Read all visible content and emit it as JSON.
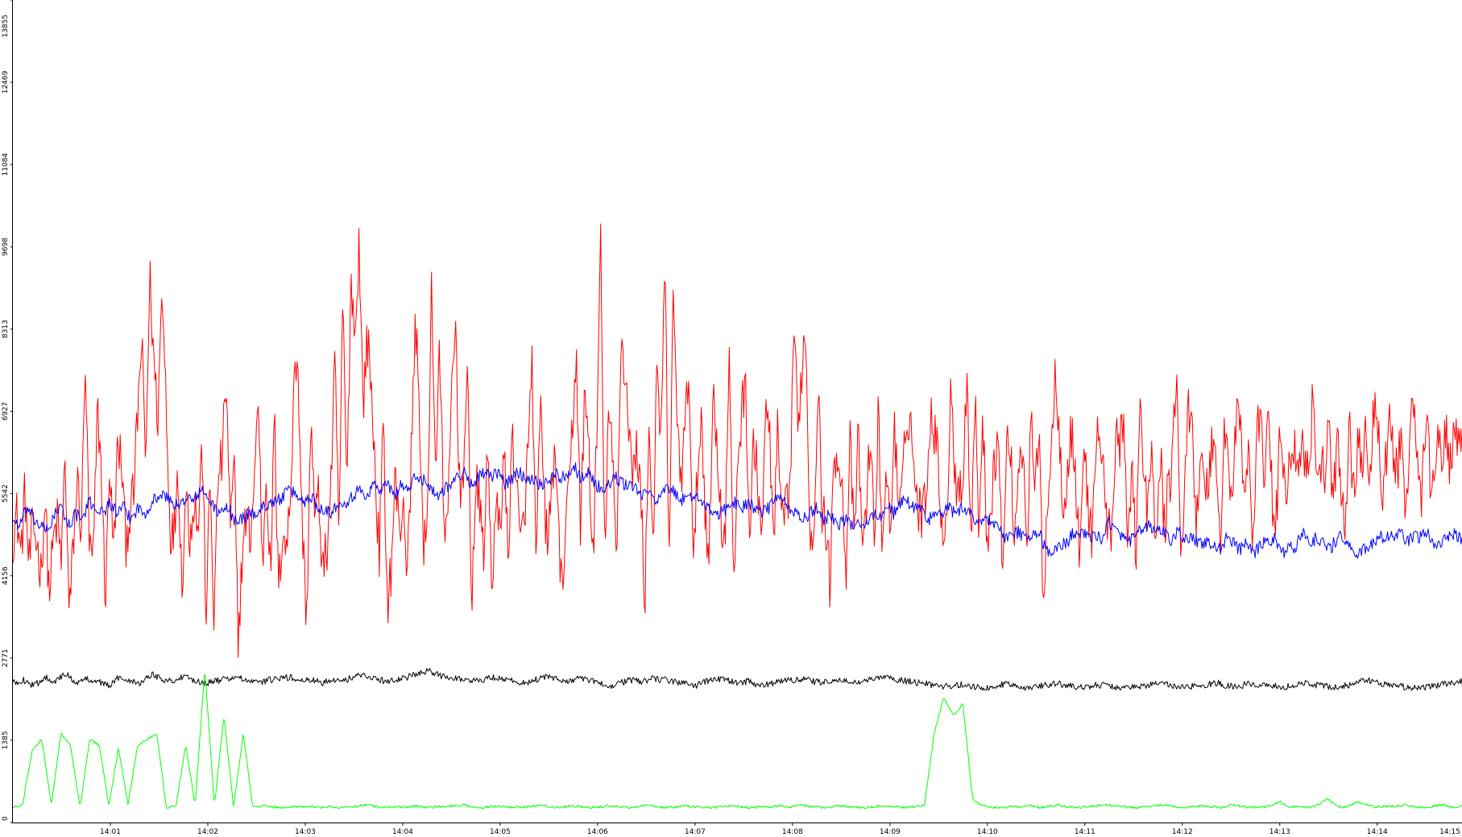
{
  "chart_data": {
    "type": "line",
    "title": "",
    "xlabel": "",
    "ylabel": "",
    "grid": false,
    "legend": "none",
    "x_ticks": [
      "14:01",
      "14:02",
      "14:03",
      "14:04",
      "14:05",
      "14:06",
      "14:07",
      "14:08",
      "14:09",
      "14:10",
      "14:11",
      "14:12",
      "14:13",
      "14:14",
      "14:15"
    ],
    "xlim_minutes": [
      0.0,
      14.87
    ],
    "y_ticks": [
      "0",
      "1385",
      "2771",
      "4156",
      "5542",
      "6927",
      "8313",
      "9698",
      "11084",
      "12469",
      "13855"
    ],
    "ylim": [
      0,
      13855
    ],
    "series": [
      {
        "color": "#ff0000",
        "samples": 1500,
        "values": [
          4800,
          5200,
          4500,
          5600,
          4300,
          5000,
          4700,
          4200,
          5500,
          3800,
          4700,
          5100,
          4400,
          6200,
          3400,
          4700,
          5800,
          4900,
          7800,
          4600,
          4400,
          7000,
          5900,
          3700,
          6100,
          4500,
          6300,
          6100,
          4700,
          5200,
          5500,
          6900,
          8100,
          6000,
          9200,
          7800,
          6800,
          8900,
          7400,
          5000,
          4800,
          6100,
          4000,
          5600,
          4800,
          5500,
          4900,
          6400,
          3500,
          5700,
          3400,
          5900,
          6100,
          7500,
          4900,
          6000,
          3100,
          4500,
          5200,
          4800,
          5800,
          7200,
          4300,
          6000,
          4100,
          6800,
          3800,
          5000,
          4600,
          5500,
          8000,
          7200,
          4800,
          3400,
          6800,
          5100,
          5500,
          4200,
          4600,
          5700,
          7700,
          4900,
          8800,
          5500,
          9300,
          8100,
          9800,
          7000,
          8200,
          7400,
          5900,
          4500,
          6700,
          3700,
          4300,
          5900,
          4800,
          5500,
          4100,
          6300,
          8500,
          7000,
          4500,
          5000,
          9200,
          5900,
          7900,
          5300,
          4800,
          7300,
          8400,
          5500,
          6100,
          7400,
          3700,
          5700,
          5300,
          4600,
          6300,
          4000,
          5200,
          5000,
          6300,
          4400,
          6500,
          5900,
          4600,
          5100,
          6300,
          7800,
          4000,
          7200,
          5300,
          4700,
          5800,
          6200,
          3900,
          4500,
          5400,
          6700,
          7900,
          4900,
          7100,
          6600,
          4300,
          6300,
          9800,
          4500,
          7000,
          6000,
          4300,
          8200,
          7600,
          6800,
          5700,
          6400,
          5500,
          3700,
          6800,
          4700,
          7500,
          6400,
          9400,
          4400,
          8700,
          7000,
          5700,
          6600,
          7800,
          4100,
          5800,
          6900,
          5300,
          4400,
          7400,
          6300,
          5000,
          4900,
          8000,
          3700,
          6100,
          6800,
          7600,
          4700,
          6400,
          5800,
          4800,
          6800,
          6600,
          4600,
          6600,
          5000,
          5200,
          5400,
          8500,
          6500,
          7700,
          8300,
          4800,
          5000,
          7500,
          5300,
          5000,
          4000,
          6000,
          6400,
          5600,
          4300,
          6400,
          4700,
          6500,
          4800,
          5100,
          6700,
          4600,
          6900,
          4700,
          5900,
          4800,
          6900,
          5100,
          5600,
          6900,
          6800,
          5800,
          5300,
          5200,
          5700,
          7000,
          6600,
          6000,
          4900,
          4800,
          7700,
          5700,
          5800,
          5700,
          7600,
          4700,
          7200,
          5000,
          6700,
          4800,
          5400,
          6200,
          6300,
          4100,
          6600,
          6000,
          4700,
          6300,
          6200,
          4800,
          6800,
          5600,
          6400,
          3700,
          5400,
          6300,
          7600,
          6600,
          5300,
          5900,
          6600,
          5800,
          4400,
          6400,
          5400,
          4800,
          6400,
          6500,
          5900,
          4800,
          5000,
          6600,
          6400,
          6500,
          4700,
          6200,
          4500,
          7100,
          5600,
          5300,
          6300,
          4300,
          6400,
          4900,
          5600,
          6100,
          7700,
          4700,
          5200,
          7100,
          6800,
          4900,
          6400,
          5400,
          5800,
          6500,
          6000,
          4700,
          6600,
          6200,
          5200,
          7200,
          6600,
          5300,
          6400,
          4500,
          6600,
          6600,
          5900,
          7200,
          5000,
          5200,
          6900,
          5400,
          6100,
          6500,
          6000,
          6400,
          6100,
          6000,
          7300,
          5900,
          5900,
          6000,
          6700,
          5300,
          6400,
          5700,
          5000,
          6700,
          5700,
          6200,
          6200,
          6400,
          5500,
          6900,
          6800,
          5500,
          6000,
          6800,
          6100,
          5900,
          6600,
          4900,
          6700,
          6800,
          6200,
          5400,
          6900,
          5900,
          5700,
          6800,
          5800,
          6600,
          6000,
          6700,
          6200,
          6200
        ],
        "note": ""
      },
      {
        "color": "#0000ff",
        "samples": 1500,
        "values": [
          5100,
          5000,
          5300,
          5100,
          5000,
          4900,
          5200,
          5300,
          5000,
          5200,
          5100,
          5400,
          5300,
          5200,
          5400,
          5200,
          5300,
          5100,
          5300,
          5200,
          5400,
          5500,
          5500,
          5400,
          5300,
          5500,
          5400,
          5600,
          5500,
          5300,
          5200,
          5300,
          5100,
          5100,
          5200,
          5200,
          5300,
          5400,
          5400,
          5500,
          5600,
          5500,
          5400,
          5500,
          5300,
          5300,
          5200,
          5400,
          5400,
          5500,
          5600,
          5500,
          5700,
          5600,
          5700,
          5500,
          5700,
          5600,
          5800,
          5800,
          5700,
          5500,
          5600,
          5700,
          5800,
          5900,
          5700,
          5800,
          5900,
          5800,
          5900,
          5700,
          5800,
          5900,
          5800,
          5800,
          5700,
          5700,
          5900,
          5800,
          5900,
          6000,
          5800,
          5900,
          5700,
          5600,
          5700,
          5800,
          5700,
          5700,
          5600,
          5500,
          5600,
          5400,
          5600,
          5600,
          5500,
          5400,
          5500,
          5500,
          5300,
          5200,
          5200,
          5300,
          5400,
          5300,
          5400,
          5300,
          5200,
          5300,
          5500,
          5400,
          5300,
          5200,
          5100,
          5200,
          5300,
          5100,
          5200,
          5000,
          5100,
          5000,
          5100,
          5000,
          5200,
          5100,
          5400,
          5200,
          5400,
          5400,
          5300,
          5300,
          5100,
          5200,
          5200,
          5300,
          5200,
          5300,
          5200,
          5100,
          5100,
          5100,
          5000,
          4800,
          4800,
          4900,
          4800,
          4800,
          4900,
          4600,
          4500,
          4700,
          4700,
          4900,
          4900,
          4800,
          4800,
          4800,
          5100,
          4900,
          4800,
          4700,
          4900,
          4900,
          5000,
          4900,
          4900,
          4700,
          4900,
          4800,
          4800,
          4700,
          4700,
          4700,
          4600,
          4800,
          4700,
          4600,
          4700,
          4500,
          4700,
          4700,
          4800,
          4500,
          4700,
          4600,
          4900,
          4700,
          4800,
          4700,
          4600,
          4800,
          4800,
          4600,
          4500,
          4600,
          4700,
          4800,
          4800,
          4800,
          4900,
          4700,
          4800,
          4800,
          4900,
          4700,
          4700,
          4800,
          4900,
          4700
        ],
        "note": ""
      },
      {
        "color": "#000000",
        "samples": 1500,
        "values": [
          2350,
          2400,
          2300,
          2450,
          2380,
          2500,
          2350,
          2420,
          2380,
          2300,
          2450,
          2400,
          2350,
          2500,
          2420,
          2380,
          2450,
          2400,
          2350,
          2380,
          2420,
          2450,
          2380,
          2350,
          2400,
          2420,
          2450,
          2380,
          2400,
          2350,
          2420,
          2380,
          2450,
          2500,
          2420,
          2380,
          2400,
          2450,
          2500,
          2550,
          2480,
          2450,
          2420,
          2380,
          2400,
          2450,
          2420,
          2380,
          2350,
          2400,
          2450,
          2420,
          2380,
          2420,
          2400,
          2350,
          2300,
          2350,
          2400,
          2380,
          2420,
          2400,
          2380,
          2350,
          2300,
          2380,
          2420,
          2400,
          2350,
          2380,
          2300,
          2330,
          2380,
          2400,
          2420,
          2380,
          2350,
          2400,
          2380,
          2350,
          2400,
          2420,
          2450,
          2400,
          2380,
          2350,
          2330,
          2300,
          2280,
          2330,
          2300,
          2250,
          2280,
          2330,
          2300,
          2280,
          2300,
          2320,
          2350,
          2300,
          2280,
          2300,
          2320,
          2300,
          2250,
          2280,
          2300,
          2320,
          2350,
          2300,
          2280,
          2300,
          2320,
          2350,
          2300,
          2280,
          2350,
          2300,
          2320,
          2280,
          2300,
          2350,
          2320,
          2300,
          2280,
          2300,
          2350,
          2400,
          2350,
          2320,
          2300,
          2280,
          2250,
          2300,
          2320,
          2350,
          2380
        ],
        "note": ""
      },
      {
        "color": "#00ff00",
        "samples": 1500,
        "values": [
          250,
          300,
          1200,
          1400,
          300,
          1500,
          1300,
          250,
          1400,
          1300,
          300,
          1250,
          300,
          1300,
          1400,
          1500,
          250,
          280,
          1300,
          300,
          2600,
          280,
          1800,
          250,
          1500,
          260,
          280,
          260,
          250,
          270,
          260,
          280,
          250,
          270,
          250,
          260,
          280,
          300,
          260,
          250,
          270,
          260,
          280,
          250,
          260,
          270,
          280,
          300,
          260,
          250,
          270,
          280,
          260,
          250,
          270,
          300,
          260,
          250,
          280,
          270,
          250,
          260,
          280,
          270,
          250,
          260,
          300,
          270,
          250,
          260,
          280,
          270,
          260,
          250,
          270,
          280,
          260,
          250,
          270,
          260,
          280,
          250,
          300,
          270,
          260,
          250,
          280,
          270,
          260,
          250,
          270,
          280,
          260,
          250,
          270,
          300,
          1500,
          2100,
          1800,
          2000,
          400,
          280,
          260,
          250,
          270,
          260,
          280,
          250,
          270,
          300,
          260,
          250,
          270,
          280,
          300,
          270,
          260,
          250,
          270,
          280,
          300,
          260,
          250,
          270,
          280,
          260,
          250,
          300,
          270,
          260,
          250,
          280,
          350,
          270,
          260,
          250,
          300,
          400,
          270,
          260,
          350,
          300,
          260,
          270,
          280,
          300,
          260,
          250,
          270,
          300,
          250,
          270
        ],
        "note": ""
      }
    ]
  }
}
